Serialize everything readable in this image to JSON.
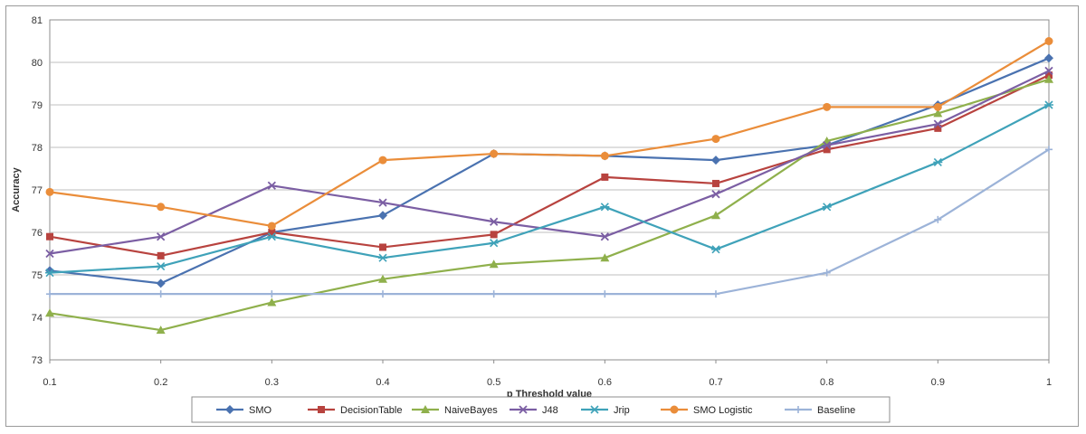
{
  "chart_data": {
    "type": "line",
    "title": "",
    "xlabel": "p Threshold value",
    "ylabel": "Accuracy",
    "x": [
      0.1,
      0.2,
      0.3,
      0.4,
      0.5,
      0.6,
      0.7,
      0.8,
      0.9,
      1
    ],
    "x_tick_labels": [
      "0.1",
      "0.2",
      "0.3",
      "0.4",
      "0.5",
      "0.6",
      "0.7",
      "0.8",
      "0.9",
      "1"
    ],
    "y_ticks": [
      73,
      74,
      75,
      76,
      77,
      78,
      79,
      80,
      81
    ],
    "y_tick_labels": [
      "73",
      "74",
      "75",
      "76",
      "77",
      "78",
      "79",
      "80",
      "81"
    ],
    "ylim": [
      73,
      81
    ],
    "grid": "horizontal",
    "legend_position": "bottom",
    "series": [
      {
        "name": "SMO",
        "color": "#4a72b0",
        "marker": "diamond",
        "values": [
          75.1,
          74.8,
          76.0,
          76.4,
          77.85,
          77.8,
          77.7,
          78.05,
          79.0,
          80.1
        ]
      },
      {
        "name": "DecisionTable",
        "color": "#b8433f",
        "marker": "square",
        "values": [
          75.9,
          75.45,
          76.0,
          75.65,
          75.95,
          77.3,
          77.15,
          77.95,
          78.45,
          79.7
        ]
      },
      {
        "name": "NaiveBayes",
        "color": "#8fb04c",
        "marker": "triangle",
        "values": [
          74.1,
          73.7,
          74.35,
          74.9,
          75.25,
          75.4,
          76.4,
          78.15,
          78.8,
          79.6
        ]
      },
      {
        "name": "J48",
        "color": "#7b5ea3",
        "marker": "x",
        "values": [
          75.5,
          75.9,
          77.1,
          76.7,
          76.25,
          75.9,
          76.9,
          78.05,
          78.55,
          79.8
        ]
      },
      {
        "name": "Jrip",
        "color": "#3fa2b9",
        "marker": "star",
        "values": [
          75.05,
          75.2,
          75.9,
          75.4,
          75.75,
          76.6,
          75.6,
          76.6,
          77.65,
          79.0
        ]
      },
      {
        "name": "SMO Logistic",
        "color": "#ea8d3a",
        "marker": "circle",
        "values": [
          76.95,
          76.6,
          76.15,
          77.7,
          77.85,
          77.8,
          78.2,
          78.95,
          78.95,
          80.5
        ]
      },
      {
        "name": "Baseline",
        "color": "#9cb3d8",
        "marker": "plus",
        "values": [
          74.55,
          74.55,
          74.55,
          74.55,
          74.55,
          74.55,
          74.55,
          75.05,
          76.3,
          77.95
        ]
      }
    ]
  }
}
